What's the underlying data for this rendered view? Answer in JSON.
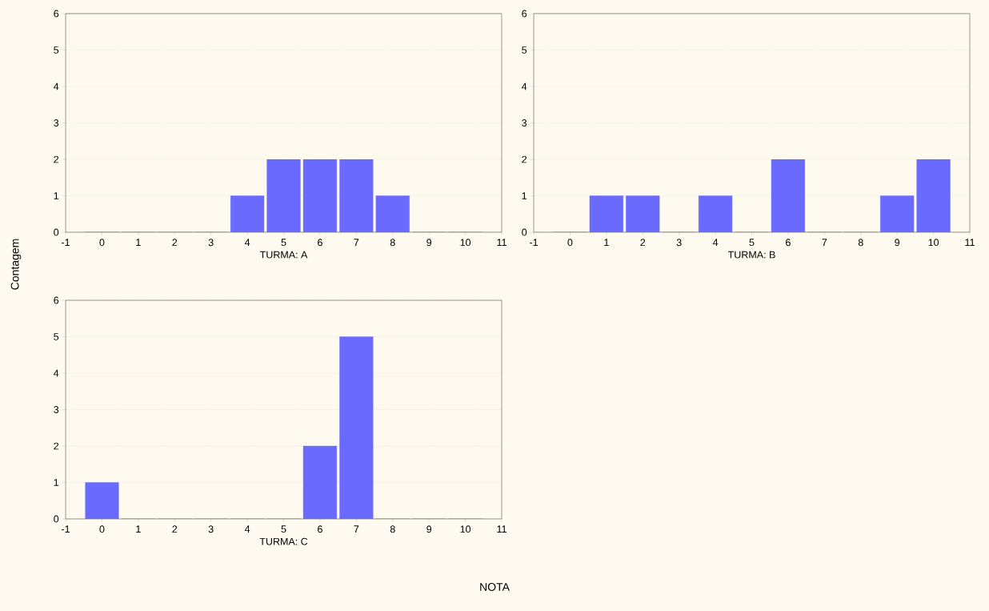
{
  "chart_data": [
    {
      "type": "bar",
      "xlabel": "TURMA: A",
      "ylabel": "Contagem",
      "x": [
        0,
        1,
        2,
        3,
        4,
        5,
        6,
        7,
        8,
        9,
        10
      ],
      "values": [
        0,
        0,
        0,
        0,
        1,
        2,
        2,
        2,
        1,
        0,
        0
      ],
      "color": "#6a6aff",
      "xlim": [
        -1,
        11
      ],
      "xticks": [
        -1,
        0,
        1,
        2,
        3,
        4,
        5,
        6,
        7,
        8,
        9,
        10,
        11
      ],
      "ylim": [
        0,
        6
      ],
      "yticks": [
        0,
        1,
        2,
        3,
        4,
        5,
        6
      ],
      "grid": "y"
    },
    {
      "type": "bar",
      "xlabel": "TURMA: B",
      "x": [
        0,
        1,
        2,
        3,
        4,
        5,
        6,
        7,
        8,
        9,
        10
      ],
      "values": [
        0,
        1,
        1,
        0,
        1,
        0,
        2,
        0,
        0,
        1,
        2
      ],
      "color": "#6a6aff",
      "xlim": [
        -1,
        11
      ],
      "xticks": [
        -1,
        0,
        1,
        2,
        3,
        4,
        5,
        6,
        7,
        8,
        9,
        10,
        11
      ],
      "ylim": [
        0,
        6
      ],
      "yticks": [
        0,
        1,
        2,
        3,
        4,
        5,
        6
      ],
      "grid": "y"
    },
    {
      "type": "bar",
      "xlabel": "TURMA: C",
      "annotations": [
        "NOTA"
      ],
      "x": [
        0,
        1,
        2,
        3,
        4,
        5,
        6,
        7,
        8,
        9,
        10
      ],
      "values": [
        1,
        0,
        0,
        0,
        0,
        0,
        2,
        5,
        0,
        0,
        0
      ],
      "color": "#6a6aff",
      "xlim": [
        -1,
        11
      ],
      "xticks": [
        -1,
        0,
        1,
        2,
        3,
        4,
        5,
        6,
        7,
        8,
        9,
        10,
        11
      ],
      "ylim": [
        0,
        6
      ],
      "yticks": [
        0,
        1,
        2,
        3,
        4,
        5,
        6
      ],
      "grid": "y"
    }
  ]
}
